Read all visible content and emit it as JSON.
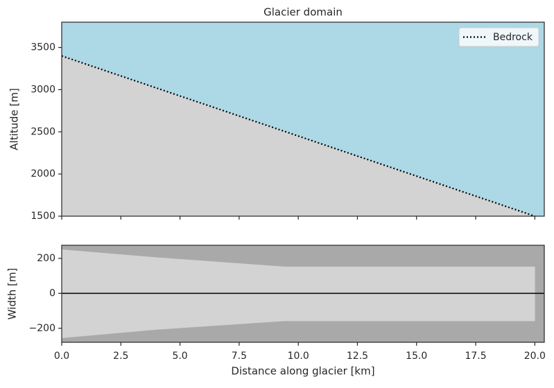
{
  "chart_data": [
    {
      "type": "line",
      "title": "Glacier domain",
      "y_label": "Altitude [m]",
      "x": [
        0,
        20
      ],
      "xlim": [
        0,
        20.4
      ],
      "ylim": [
        1500,
        3800
      ],
      "yticks": [
        1500,
        2000,
        2500,
        3000,
        3500
      ],
      "background": "#add8e6",
      "fill_below": "#d3d3d3",
      "series": [
        {
          "name": "Bedrock",
          "color": "#000000",
          "values": [
            3400,
            1500
          ],
          "style": "dotted"
        }
      ],
      "legend": "upper right"
    },
    {
      "type": "band",
      "y_label": "Width [m]",
      "x_label": "Distance along glacier [km]",
      "x": [
        0,
        4,
        9.4,
        20
      ],
      "upper": [
        250,
        205,
        152,
        152
      ],
      "lower": [
        -255,
        -207,
        -158,
        -158
      ],
      "xlim": [
        0,
        20.4
      ],
      "ylim": [
        -280,
        275
      ],
      "xticks": [
        {
          "value": 0,
          "label": "0.0"
        },
        {
          "value": 2.5,
          "label": "2.5"
        },
        {
          "value": 5,
          "label": "5.0"
        },
        {
          "value": 7.5,
          "label": "7.5"
        },
        {
          "value": 10,
          "label": "10.0"
        },
        {
          "value": 12.5,
          "label": "12.5"
        },
        {
          "value": 15,
          "label": "15.0"
        },
        {
          "value": 17.5,
          "label": "17.5"
        },
        {
          "value": 20,
          "label": "20.0"
        }
      ],
      "yticks": [
        {
          "value": -200,
          "label": "−200"
        },
        0,
        200
      ],
      "hline": 0,
      "background": "#a9a9a9",
      "color": "#d3d3d3"
    }
  ]
}
